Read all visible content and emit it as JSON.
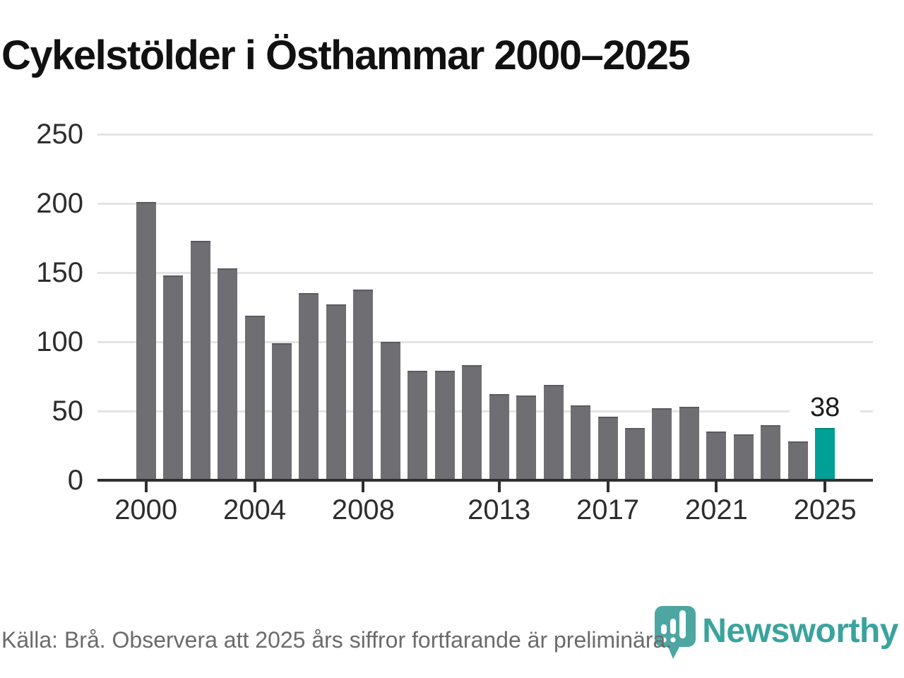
{
  "title": "Cykelstölder i Östhammar 2000–2025",
  "chart_data": {
    "type": "bar",
    "title": "Cykelstölder i Östhammar 2000–2025",
    "categories": [
      2000,
      2001,
      2002,
      2003,
      2004,
      2005,
      2006,
      2007,
      2008,
      2009,
      2010,
      2011,
      2012,
      2013,
      2014,
      2015,
      2016,
      2017,
      2018,
      2019,
      2020,
      2021,
      2022,
      2023,
      2024,
      2025
    ],
    "values": [
      201,
      148,
      173,
      153,
      119,
      99,
      135,
      127,
      138,
      100,
      79,
      79,
      83,
      62,
      61,
      69,
      54,
      46,
      38,
      52,
      53,
      35,
      33,
      40,
      28,
      38
    ],
    "xlabel": "",
    "ylabel": "",
    "ylim": [
      0,
      250
    ],
    "y_ticks": [
      0,
      50,
      100,
      150,
      200,
      250
    ],
    "x_tick_years": [
      2000,
      2004,
      2008,
      2013,
      2017,
      2021,
      2025
    ],
    "grid": true,
    "legend": false,
    "highlight_year": 2025,
    "value_labels": [
      {
        "year": 2025,
        "label": "38"
      }
    ],
    "colors": {
      "bar": "#6f6e73",
      "highlight": "#00a096",
      "grid": "#e4e4e4",
      "axis": "#2f2f2f",
      "tick_text": "#2d2d2d"
    }
  },
  "footer": {
    "source_text": "Källa: Brå. Observera att 2025 års siffror fortfarande är preliminära.",
    "brand": "Newsworthy"
  }
}
